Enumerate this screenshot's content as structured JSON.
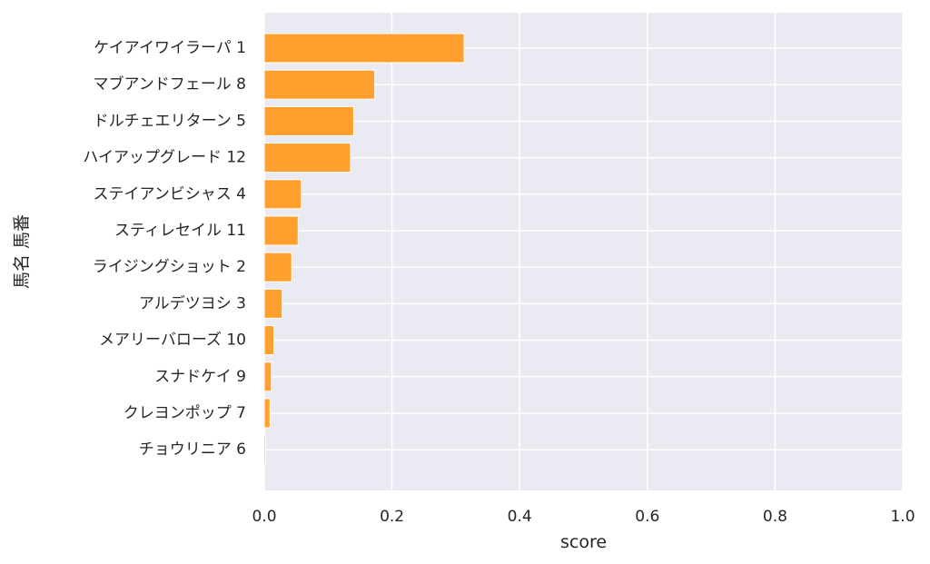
{
  "chart_data": {
    "type": "bar",
    "orientation": "horizontal",
    "categories": [
      "ケイアイワイラーパ 1",
      "マブアンドフェール 8",
      "ドルチェエリターン 5",
      "ハイアップグレード 12",
      "ステイアンビシャス 4",
      "スティレセイル 11",
      "ライジングショット 2",
      "アルデツヨシ 3",
      "メアリーバローズ 10",
      "スナドケイ 9",
      "クレヨンポップ 7",
      "チョウリニア 6"
    ],
    "values": [
      0.313,
      0.173,
      0.14,
      0.135,
      0.058,
      0.053,
      0.043,
      0.028,
      0.015,
      0.011,
      0.009,
      0.002
    ],
    "xlabel": "score",
    "ylabel": "馬名 馬番",
    "xlim": [
      0.0,
      1.0
    ],
    "xticks": [
      "0.0",
      "0.2",
      "0.4",
      "0.6",
      "0.8",
      "1.0"
    ],
    "grid": true,
    "bar_color": "#ff9f2e",
    "background_color": "#eaeaf2"
  }
}
